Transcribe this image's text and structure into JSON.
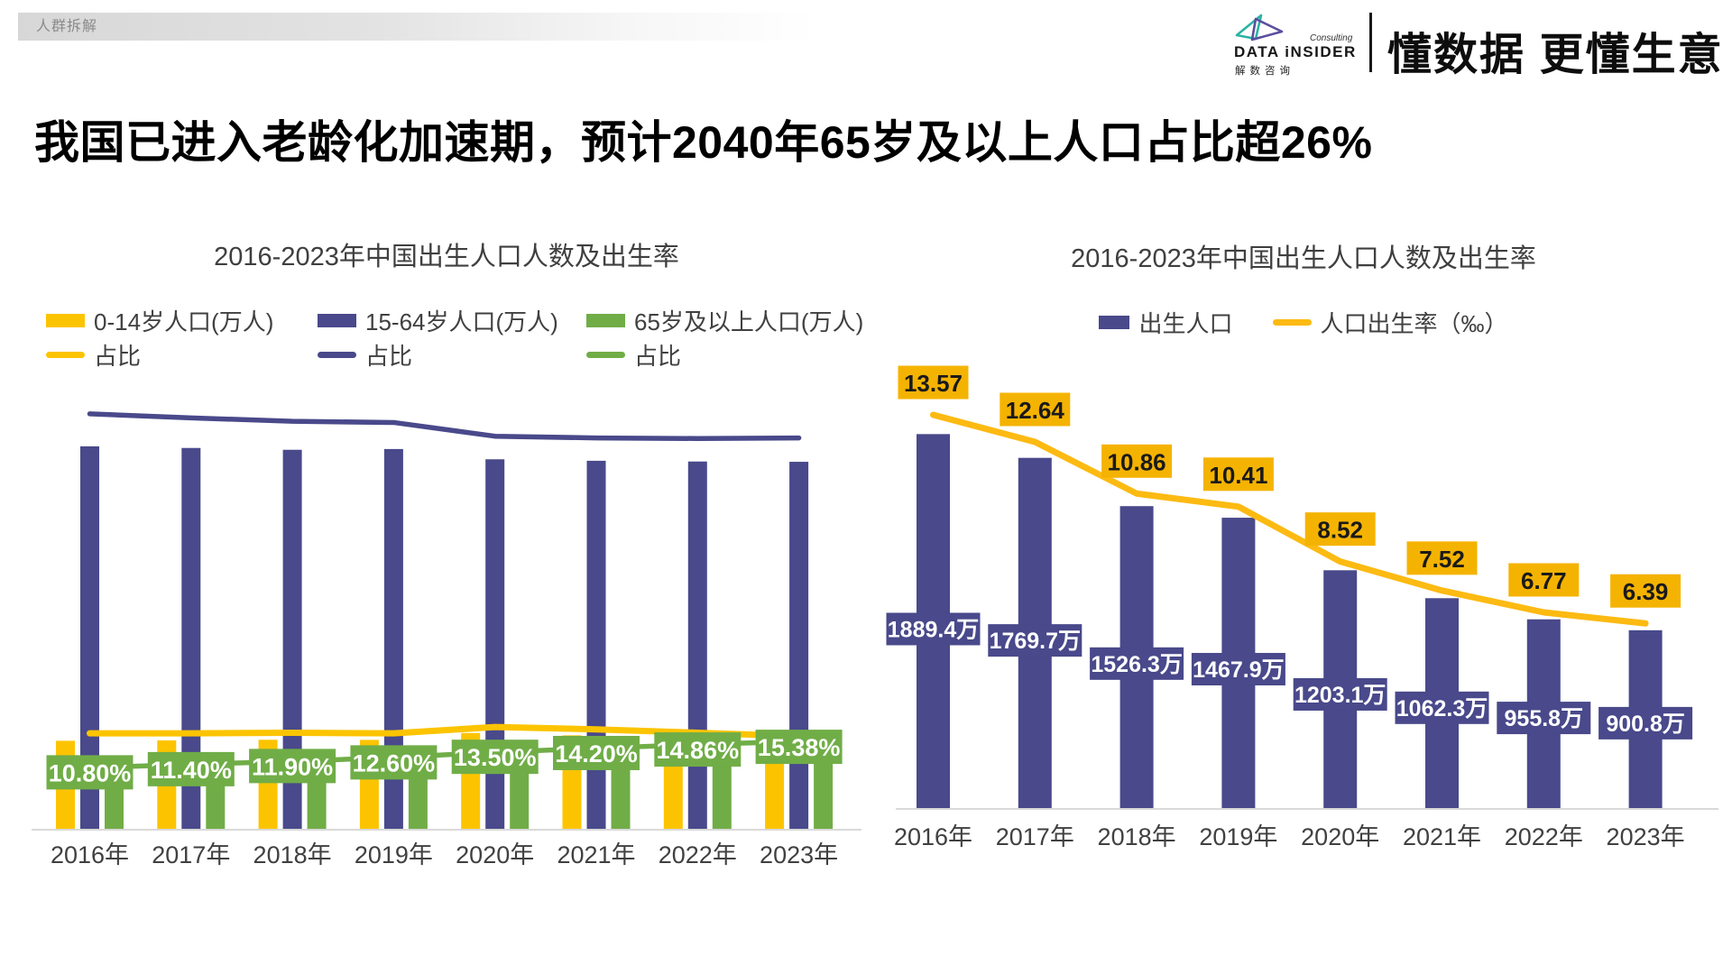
{
  "header": {
    "section_tag": "人群拆解",
    "logo": {
      "brand": "DATA iNSIDER",
      "consulting": "Consulting",
      "brand_cn": "解数咨询",
      "slogan": "懂数据 更懂生意",
      "mark_teal": "#2BB3A3",
      "mark_purple": "#5A4FA0"
    }
  },
  "main_title": "我国已进入老龄化加速期，预计2040年65岁及以上人口占比超26%",
  "chart_data": [
    {
      "id": "population-age-structure",
      "type": "bar",
      "title": "2016-2023年中国出生人口人数及出生率",
      "categories": [
        "2016年",
        "2017年",
        "2018年",
        "2019年",
        "2020年",
        "2021年",
        "2022年",
        "2023年"
      ],
      "legend_position": "top-left, two rows",
      "grid": false,
      "y_axis_visible": false,
      "series": [
        {
          "name": "0-14岁人口(万人)",
          "kind": "bar",
          "color": "#FCC400",
          "values": [
            23252,
            23348,
            23523,
            23492,
            25277,
            24678,
            23908,
            23063
          ],
          "estimated": true
        },
        {
          "name": "15-64岁人口(万人)",
          "kind": "bar",
          "color": "#49498B",
          "values": [
            100260,
            99829,
            99357,
            99552,
            96871,
            96481,
            96289,
            96214
          ],
          "estimated": true
        },
        {
          "name": "65岁及以上人口(万人)",
          "kind": "bar",
          "color": "#70AD47",
          "values": [
            15003,
            15831,
            16658,
            17603,
            19064,
            20056,
            20978,
            21676
          ],
          "estimated": true
        },
        {
          "name": "占比",
          "kind": "line",
          "color": "#FCC400",
          "unit": "%",
          "values": [
            16.8,
            16.8,
            16.9,
            16.8,
            17.9,
            17.5,
            16.9,
            16.3
          ],
          "estimated": true
        },
        {
          "name": "占比",
          "kind": "line",
          "color": "#49498B",
          "unit": "%",
          "values": [
            72.5,
            71.8,
            71.2,
            71.0,
            68.6,
            68.3,
            68.2,
            68.3
          ],
          "estimated": true
        },
        {
          "name": "占比",
          "kind": "line",
          "color": "#70AD47",
          "unit": "%",
          "values": [
            10.8,
            11.4,
            11.9,
            12.6,
            13.5,
            14.2,
            14.86,
            15.38
          ],
          "data_labels": [
            "10.80%",
            "11.40%",
            "11.90%",
            "12.60%",
            "13.50%",
            "14.20%",
            "14.86%",
            "15.38%"
          ],
          "label_box_color": "#70AD47",
          "label_text_color": "#FFFFFF"
        }
      ]
    },
    {
      "id": "births-and-birth-rate",
      "type": "bar",
      "title": "2016-2023年中国出生人口人数及出生率",
      "categories": [
        "2016年",
        "2017年",
        "2018年",
        "2019年",
        "2020年",
        "2021年",
        "2022年",
        "2023年"
      ],
      "legend_position": "top-center",
      "grid": false,
      "y_axis_visible": false,
      "series": [
        {
          "name": "出生人口",
          "kind": "bar",
          "color": "#49498B",
          "values": [
            1889.4,
            1769.7,
            1526.3,
            1467.9,
            1203.1,
            1062.3,
            955.8,
            900.8
          ],
          "data_labels": [
            "1889.4万",
            "1769.7万",
            "1526.3万",
            "1467.9万",
            "1203.1万",
            "1062.3万",
            "955.8万",
            "900.8万"
          ],
          "label_box_color": "#49498B",
          "label_text_color": "#FFFFFF"
        },
        {
          "name": "人口出生率（‰）",
          "kind": "line",
          "color": "#FCBA12",
          "unit": "‰",
          "values": [
            13.57,
            12.64,
            10.86,
            10.41,
            8.52,
            7.52,
            6.77,
            6.39
          ],
          "data_labels": [
            "13.57",
            "12.64",
            "10.86",
            "10.41",
            "8.52",
            "7.52",
            "6.77",
            "6.39"
          ],
          "label_box_color": "#F5B301",
          "label_text_color": "#1a1a1a"
        }
      ]
    }
  ],
  "axis_color": "#D9D9D9",
  "axis_label_color": "#404040"
}
